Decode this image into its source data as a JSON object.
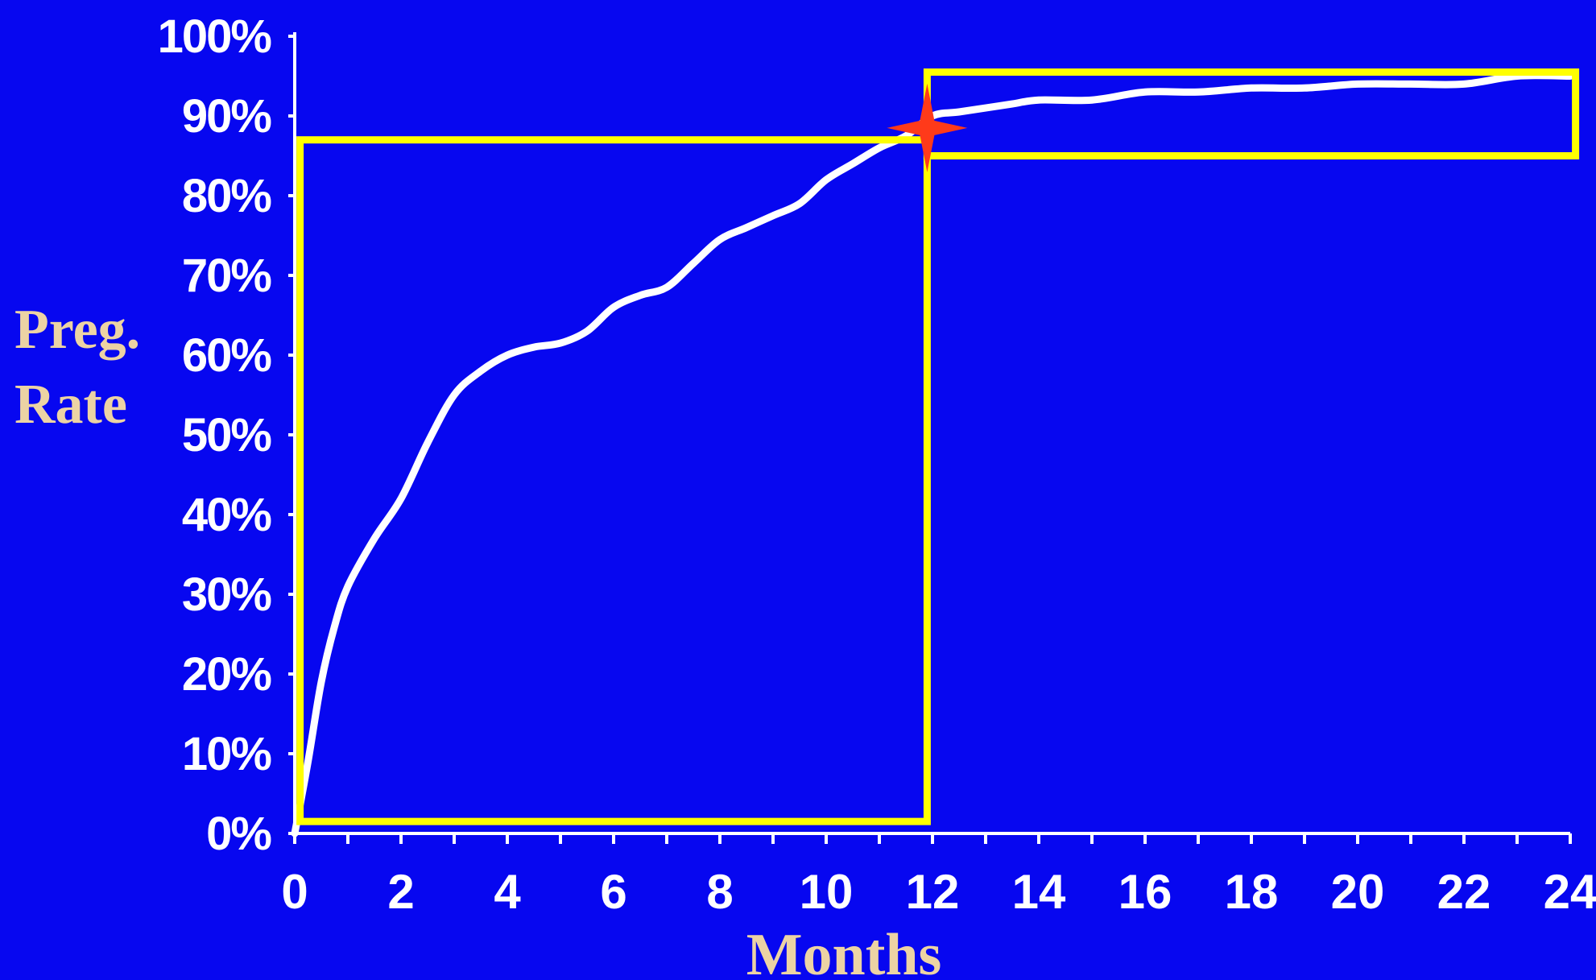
{
  "chart_data": {
    "type": "line",
    "title": "",
    "xlabel": "Months",
    "ylabel": [
      "Preg.",
      "Rate"
    ],
    "x_ticks": [
      "0",
      "2",
      "4",
      "6",
      "8",
      "10",
      "12",
      "14",
      "16",
      "18",
      "20",
      "22",
      "24"
    ],
    "y_ticks": [
      "0%",
      "10%",
      "20%",
      "30%",
      "40%",
      "50%",
      "60%",
      "70%",
      "80%",
      "90%",
      "100%"
    ],
    "xlim": [
      0,
      24
    ],
    "ylim": [
      0,
      100
    ],
    "grid": false,
    "series": [
      {
        "x": [
          0,
          0.25,
          0.5,
          0.75,
          1,
          1.5,
          2,
          2.5,
          3,
          3.5,
          4,
          4.5,
          5,
          5.5,
          6,
          6.5,
          7,
          7.5,
          8,
          8.5,
          9,
          9.5,
          10,
          10.5,
          11,
          11.5,
          12,
          12.5,
          13,
          13.5,
          14,
          15,
          16,
          17,
          18,
          19,
          20,
          21,
          22,
          23,
          24
        ],
        "y": [
          0,
          9,
          19,
          26,
          31,
          37,
          42,
          49,
          55,
          58,
          60,
          61,
          61.5,
          63,
          66,
          67.5,
          68.5,
          71.5,
          74.5,
          76,
          77.5,
          79,
          82,
          84,
          86,
          87.5,
          90,
          90.5,
          91,
          91.5,
          92,
          92,
          93,
          93,
          93.5,
          93.5,
          94,
          94,
          94,
          95,
          95
        ]
      }
    ],
    "colors": {
      "background": "#0707f0",
      "line": "#ffffff",
      "highlight_box": "#ffff00",
      "marker": "#ff3a1a",
      "axis_title": "#ecd3a4"
    },
    "annotations": [
      {
        "type": "box",
        "x_range": [
          0.1,
          11.9
        ],
        "y_range": [
          1.5,
          87
        ]
      },
      {
        "type": "box",
        "x_range": [
          11.9,
          24.1
        ],
        "y_range": [
          85,
          95.5
        ]
      },
      {
        "type": "star",
        "x": 11.9,
        "y": 88.5
      }
    ]
  }
}
